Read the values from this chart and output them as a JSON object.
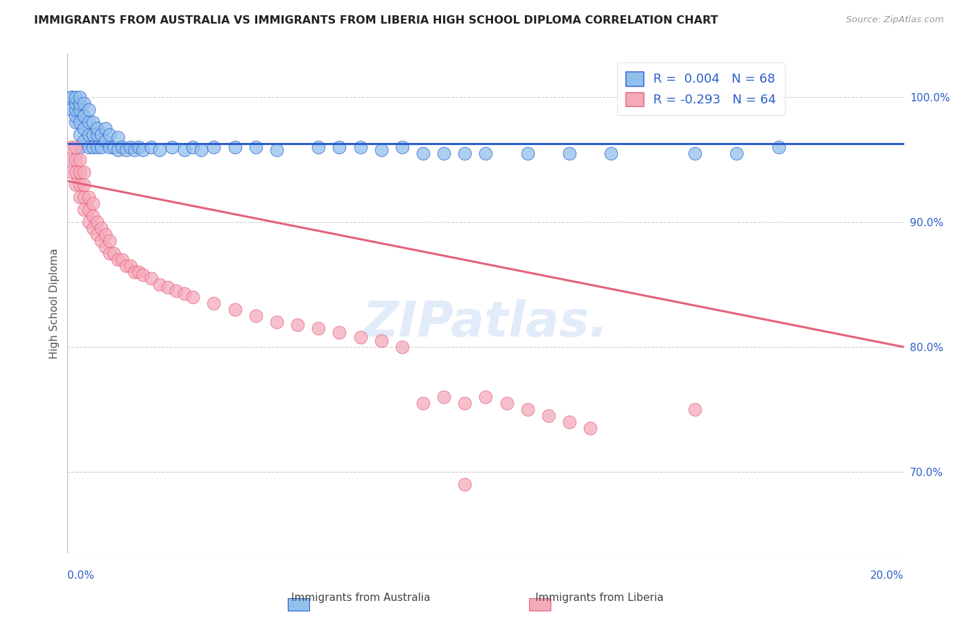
{
  "title": "IMMIGRANTS FROM AUSTRALIA VS IMMIGRANTS FROM LIBERIA HIGH SCHOOL DIPLOMA CORRELATION CHART",
  "source": "Source: ZipAtlas.com",
  "ylabel": "High School Diploma",
  "xmin": 0.0,
  "xmax": 0.2,
  "ymin": 0.635,
  "ymax": 1.035,
  "yticks": [
    0.7,
    0.8,
    0.9,
    1.0
  ],
  "ytick_labels": [
    "70.0%",
    "80.0%",
    "90.0%",
    "100.0%"
  ],
  "xtick_labels": [
    "0.0%",
    "20.0%"
  ],
  "color_australia": "#92C0ED",
  "color_liberia": "#F5AABB",
  "color_line_australia": "#2B5ECC",
  "color_line_liberia": "#E5607A",
  "color_title": "#222222",
  "color_source": "#999999",
  "color_tick_labels": "#2B5ECC",
  "color_ylabel": "#555555",
  "aus_line_y0": 0.963,
  "aus_line_y1": 0.963,
  "lib_line_y0": 0.933,
  "lib_line_y1": 0.8,
  "australia_x": [
    0.001,
    0.001,
    0.001,
    0.002,
    0.002,
    0.002,
    0.002,
    0.002,
    0.003,
    0.003,
    0.003,
    0.003,
    0.003,
    0.003,
    0.004,
    0.004,
    0.004,
    0.004,
    0.005,
    0.005,
    0.005,
    0.005,
    0.006,
    0.006,
    0.006,
    0.007,
    0.007,
    0.007,
    0.008,
    0.008,
    0.009,
    0.009,
    0.01,
    0.01,
    0.011,
    0.012,
    0.012,
    0.013,
    0.014,
    0.015,
    0.016,
    0.017,
    0.018,
    0.02,
    0.022,
    0.025,
    0.028,
    0.03,
    0.032,
    0.035,
    0.04,
    0.045,
    0.05,
    0.06,
    0.065,
    0.07,
    0.075,
    0.08,
    0.085,
    0.09,
    0.095,
    0.1,
    0.11,
    0.12,
    0.13,
    0.15,
    0.16,
    0.17
  ],
  "australia_y": [
    0.99,
    1.0,
    1.0,
    0.98,
    0.985,
    0.99,
    0.995,
    1.0,
    0.96,
    0.97,
    0.98,
    0.99,
    0.995,
    1.0,
    0.965,
    0.975,
    0.985,
    0.995,
    0.96,
    0.97,
    0.98,
    0.99,
    0.96,
    0.97,
    0.98,
    0.96,
    0.97,
    0.975,
    0.96,
    0.97,
    0.965,
    0.975,
    0.96,
    0.97,
    0.96,
    0.958,
    0.968,
    0.96,
    0.958,
    0.96,
    0.958,
    0.96,
    0.958,
    0.96,
    0.958,
    0.96,
    0.958,
    0.96,
    0.958,
    0.96,
    0.96,
    0.96,
    0.958,
    0.96,
    0.96,
    0.96,
    0.958,
    0.96,
    0.955,
    0.955,
    0.955,
    0.955,
    0.955,
    0.955,
    0.955,
    0.955,
    0.955,
    0.96
  ],
  "liberia_x": [
    0.001,
    0.001,
    0.001,
    0.002,
    0.002,
    0.002,
    0.002,
    0.003,
    0.003,
    0.003,
    0.003,
    0.004,
    0.004,
    0.004,
    0.004,
    0.005,
    0.005,
    0.005,
    0.006,
    0.006,
    0.006,
    0.007,
    0.007,
    0.008,
    0.008,
    0.009,
    0.009,
    0.01,
    0.01,
    0.011,
    0.012,
    0.013,
    0.014,
    0.015,
    0.016,
    0.017,
    0.018,
    0.02,
    0.022,
    0.024,
    0.026,
    0.028,
    0.03,
    0.035,
    0.04,
    0.045,
    0.05,
    0.055,
    0.06,
    0.065,
    0.07,
    0.075,
    0.08,
    0.085,
    0.09,
    0.095,
    0.1,
    0.105,
    0.11,
    0.115,
    0.12,
    0.125,
    0.15,
    0.095
  ],
  "liberia_y": [
    0.94,
    0.95,
    0.96,
    0.93,
    0.94,
    0.95,
    0.96,
    0.92,
    0.93,
    0.94,
    0.95,
    0.91,
    0.92,
    0.93,
    0.94,
    0.9,
    0.91,
    0.92,
    0.895,
    0.905,
    0.915,
    0.89,
    0.9,
    0.885,
    0.895,
    0.88,
    0.89,
    0.875,
    0.885,
    0.875,
    0.87,
    0.87,
    0.865,
    0.865,
    0.86,
    0.86,
    0.858,
    0.855,
    0.85,
    0.848,
    0.845,
    0.843,
    0.84,
    0.835,
    0.83,
    0.825,
    0.82,
    0.818,
    0.815,
    0.812,
    0.808,
    0.805,
    0.8,
    0.755,
    0.76,
    0.755,
    0.76,
    0.755,
    0.75,
    0.745,
    0.74,
    0.735,
    0.75,
    0.69
  ]
}
